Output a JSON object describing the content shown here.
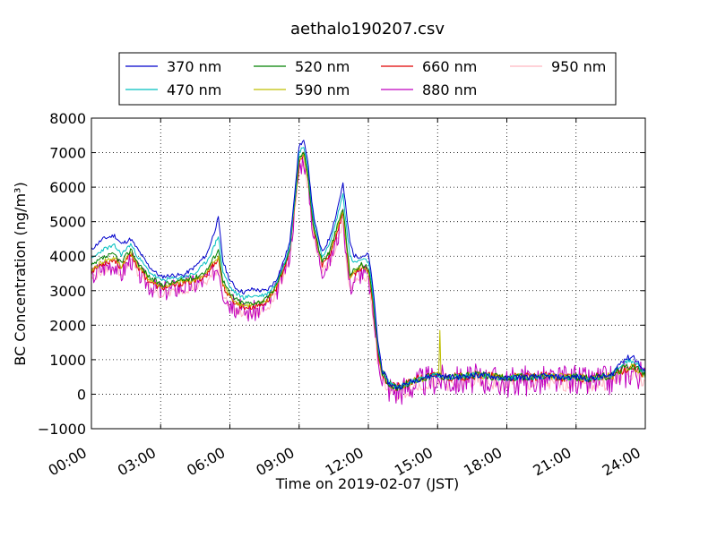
{
  "chart_data": {
    "type": "line",
    "title": "aethalo190207.csv",
    "xlabel": "Time on 2019-02-07 (JST)",
    "ylabel": "BC Concentration (ng/m³)",
    "xlim_hours": [
      0,
      24
    ],
    "ylim": [
      -1000,
      8000
    ],
    "grid": true,
    "legend_position": "top (above plot)",
    "xticks": [
      {
        "h": 0,
        "label": "00:00"
      },
      {
        "h": 3,
        "label": "03:00"
      },
      {
        "h": 6,
        "label": "06:00"
      },
      {
        "h": 9,
        "label": "09:00"
      },
      {
        "h": 12,
        "label": "12:00"
      },
      {
        "h": 15,
        "label": "15:00"
      },
      {
        "h": 18,
        "label": "18:00"
      },
      {
        "h": 21,
        "label": "21:00"
      },
      {
        "h": 24,
        "label": "24:00"
      }
    ],
    "yticks": [
      {
        "v": 8000,
        "label": "8000"
      },
      {
        "v": 7000,
        "label": "7000"
      },
      {
        "v": 6000,
        "label": "6000"
      },
      {
        "v": 5000,
        "label": "5000"
      },
      {
        "v": 4000,
        "label": "4000"
      },
      {
        "v": 3000,
        "label": "3000"
      },
      {
        "v": 2000,
        "label": "2000"
      },
      {
        "v": 1000,
        "label": "1000"
      },
      {
        "v": 0,
        "label": "0"
      },
      {
        "v": -1000,
        "label": "−1000"
      }
    ],
    "baseline": {
      "x": [
        0.0,
        0.5,
        1.0,
        1.3,
        1.7,
        2.0,
        2.5,
        3.0,
        3.5,
        4.0,
        4.5,
        5.0,
        5.3,
        5.5,
        5.7,
        6.0,
        6.3,
        6.6,
        7.0,
        7.3,
        7.6,
        8.0,
        8.3,
        8.6,
        9.0,
        9.2,
        9.4,
        9.6,
        9.8,
        10.0,
        10.3,
        10.6,
        10.9,
        11.2,
        11.4,
        11.7,
        12.0,
        12.2,
        12.4,
        12.6,
        12.9,
        13.2,
        13.5,
        14.0,
        14.5,
        15.0,
        15.5,
        16.0,
        16.5,
        17.0,
        17.5,
        18.0,
        18.5,
        19.0,
        19.5,
        20.0,
        20.5,
        21.0,
        21.5,
        22.0,
        22.5,
        23.0,
        23.5,
        24.0
      ],
      "y": [
        3600,
        3800,
        3900,
        3650,
        4100,
        3700,
        3300,
        3100,
        3150,
        3250,
        3300,
        3450,
        3750,
        3900,
        3150,
        2800,
        2650,
        2550,
        2550,
        2600,
        2700,
        3100,
        3600,
        4200,
        6700,
        6950,
        6200,
        4900,
        4300,
        3800,
        4000,
        4600,
        5200,
        3300,
        3500,
        3700,
        3550,
        2600,
        1300,
        600,
        300,
        200,
        250,
        400,
        500,
        550,
        500,
        500,
        550,
        550,
        500,
        450,
        500,
        480,
        520,
        500,
        480,
        500,
        450,
        500,
        520,
        700,
        800,
        550
      ]
    },
    "series": [
      {
        "name": "370 nm",
        "color": "#0000cc",
        "offsets": [
          600,
          700,
          700,
          700,
          400,
          500,
          400,
          300,
          300,
          200,
          400,
          600,
          900,
          1200,
          700,
          500,
          400,
          400,
          500,
          400,
          300,
          200,
          200,
          200,
          500,
          400,
          400,
          400,
          300,
          300,
          500,
          600,
          900,
          1100,
          500,
          300,
          500,
          500,
          300,
          100,
          0,
          0,
          0,
          0,
          0,
          0,
          0,
          0,
          0,
          0,
          0,
          0,
          0,
          0,
          0,
          0,
          0,
          0,
          0,
          0,
          0,
          300,
          300,
          50
        ],
        "amp": 60,
        "seed": 11
      },
      {
        "name": "470 nm",
        "color": "#00bfbf",
        "offsets": [
          300,
          400,
          400,
          400,
          250,
          300,
          250,
          200,
          200,
          150,
          200,
          400,
          500,
          700,
          400,
          300,
          250,
          250,
          300,
          250,
          200,
          100,
          100,
          100,
          300,
          250,
          250,
          250,
          200,
          200,
          300,
          400,
          600,
          700,
          300,
          200,
          300,
          300,
          200,
          80,
          0,
          0,
          0,
          0,
          0,
          0,
          0,
          0,
          0,
          0,
          0,
          0,
          0,
          0,
          0,
          0,
          0,
          0,
          0,
          0,
          0,
          200,
          200,
          30
        ],
        "amp": 60,
        "seed": 23
      },
      {
        "name": "520 nm",
        "color": "#008000",
        "offsets": [
          100,
          150,
          150,
          150,
          100,
          120,
          100,
          80,
          80,
          60,
          80,
          150,
          200,
          300,
          150,
          100,
          80,
          80,
          100,
          80,
          60,
          40,
          40,
          50,
          100,
          80,
          80,
          80,
          60,
          60,
          100,
          150,
          200,
          200,
          100,
          60,
          100,
          100,
          60,
          30,
          0,
          0,
          0,
          0,
          0,
          0,
          0,
          0,
          0,
          0,
          0,
          0,
          0,
          0,
          0,
          0,
          0,
          0,
          0,
          0,
          0,
          50,
          50,
          10
        ],
        "amp": 80,
        "seed": 37
      },
      {
        "name": "590 nm",
        "color": "#bfbf00",
        "offsets": [
          0,
          50,
          50,
          50,
          30,
          40,
          30,
          20,
          20,
          20,
          20,
          50,
          80,
          100,
          50,
          30,
          20,
          20,
          30,
          20,
          20,
          10,
          10,
          10,
          30,
          20,
          20,
          20,
          10,
          10,
          30,
          50,
          80,
          80,
          30,
          20,
          30,
          30,
          20,
          10,
          0,
          0,
          0,
          0,
          0,
          0,
          0,
          0,
          0,
          0,
          0,
          0,
          0,
          0,
          0,
          0,
          0,
          0,
          0,
          0,
          0,
          20,
          20,
          0
        ],
        "amp": 80,
        "seed": 41,
        "spike_h": 15.1,
        "spike_v": 1850
      },
      {
        "name": "660 nm",
        "color": "#e00000",
        "offsets": [
          -50,
          0,
          0,
          0,
          -20,
          0,
          -20,
          -20,
          -20,
          -20,
          -20,
          0,
          20,
          40,
          0,
          -20,
          -30,
          -30,
          -20,
          -20,
          -20,
          -30,
          -30,
          -30,
          -20,
          -20,
          -20,
          -20,
          -30,
          -30,
          -20,
          0,
          40,
          40,
          0,
          -20,
          0,
          0,
          -20,
          -20,
          0,
          0,
          0,
          0,
          0,
          0,
          0,
          0,
          0,
          0,
          0,
          0,
          0,
          0,
          0,
          0,
          0,
          0,
          0,
          0,
          0,
          0,
          0,
          0
        ],
        "amp": 90,
        "seed": 53
      },
      {
        "name": "880 nm",
        "color": "#bf00bf",
        "offsets": [
          -200,
          -100,
          -100,
          -150,
          -150,
          -150,
          -120,
          -100,
          -100,
          -100,
          -100,
          -100,
          -150,
          -150,
          -150,
          -150,
          -150,
          -150,
          -150,
          -120,
          -100,
          -120,
          -100,
          -100,
          -150,
          -100,
          -100,
          -150,
          -150,
          -150,
          -150,
          -150,
          -150,
          -200,
          -150,
          -150,
          -150,
          -150,
          -150,
          -100,
          -100,
          -100,
          -100,
          -100,
          -100,
          -100,
          -100,
          -100,
          -100,
          -100,
          -100,
          -100,
          -100,
          -100,
          -100,
          -100,
          -100,
          -100,
          -100,
          -100,
          -100,
          -100,
          -100,
          -100
        ],
        "amp": 320,
        "seed": 67
      },
      {
        "name": "950 nm",
        "color": "#ffb6c1",
        "offsets": [
          -250,
          -200,
          -200,
          -200,
          -200,
          -200,
          -200,
          -200,
          -200,
          -200,
          -200,
          -200,
          -250,
          -250,
          -250,
          -300,
          -250,
          -250,
          -250,
          -200,
          -200,
          -200,
          -200,
          -200,
          -300,
          -250,
          -250,
          -250,
          -250,
          -250,
          -250,
          -250,
          -300,
          -350,
          -250,
          -250,
          -250,
          -300,
          -300,
          -200,
          -200,
          -200,
          -200,
          -200,
          -200,
          -200,
          -200,
          -200,
          -200,
          -200,
          -200,
          -200,
          -200,
          -200,
          -200,
          -200,
          -200,
          -200,
          -200,
          -200,
          -200,
          -200,
          -200,
          -200
        ],
        "amp": 150,
        "seed": 79
      }
    ]
  }
}
